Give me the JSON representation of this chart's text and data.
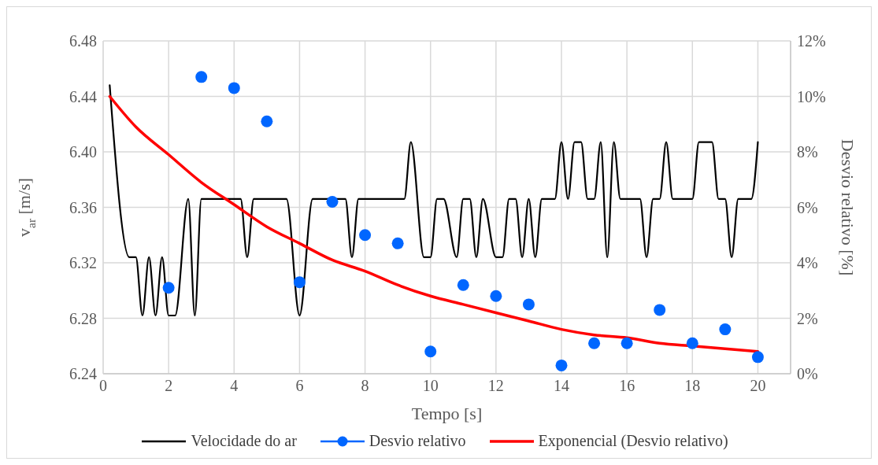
{
  "chart_data": {
    "type": "line",
    "xlabel": "Tempo [s]",
    "ylabel": "v$_{ar}$ [m/s]",
    "y2label": "Desvio relativo [%]",
    "xlim": [
      0,
      21
    ],
    "xticks": [
      0,
      2,
      4,
      6,
      8,
      10,
      12,
      14,
      16,
      18,
      20
    ],
    "ylim": [
      6.24,
      6.48
    ],
    "yticks": [
      6.24,
      6.28,
      6.32,
      6.36,
      {
        "value": 6.4,
        "label": "6.40"
      },
      6.44,
      6.48
    ],
    "y2lim": [
      0,
      12
    ],
    "y2ticks": [
      {
        "value": 0,
        "label": "0%"
      },
      {
        "value": 2,
        "label": "2%"
      },
      {
        "value": 4,
        "label": "4%"
      },
      {
        "value": 6,
        "label": "6%"
      },
      {
        "value": 8,
        "label": "8%"
      },
      {
        "value": 10,
        "label": "10%"
      },
      {
        "value": 12,
        "label": "12%"
      }
    ],
    "grid": true,
    "legend": "bottom",
    "series": [
      {
        "name": "Velocidade do ar",
        "color": "#000000",
        "marker": "none",
        "x": [
          0.2,
          0.8,
          1.0,
          1.2,
          1.4,
          1.6,
          1.8,
          2.0,
          2.2,
          2.6,
          2.8,
          3.0,
          3.4,
          4.0,
          4.2,
          4.4,
          4.6,
          5.0,
          5.6,
          6.0,
          6.4,
          7.0,
          7.4,
          7.6,
          7.8,
          8.4,
          9.2,
          9.4,
          9.8,
          10.0,
          10.2,
          10.4,
          10.8,
          11.0,
          11.2,
          11.4,
          11.6,
          12.0,
          12.2,
          12.4,
          12.6,
          12.8,
          13.0,
          13.2,
          13.4,
          13.8,
          14.0,
          14.2,
          14.4,
          14.6,
          14.8,
          15.0,
          15.2,
          15.4,
          15.6,
          15.8,
          16.4,
          16.6,
          16.8,
          17.0,
          17.2,
          17.4,
          18.0,
          18.2,
          18.4,
          18.6,
          18.8,
          19.0,
          19.2,
          19.4,
          19.8,
          20.0
        ],
        "values": [
          6.448,
          6.324,
          6.324,
          6.282,
          6.324,
          6.282,
          6.324,
          6.282,
          6.282,
          6.366,
          6.282,
          6.366,
          6.366,
          6.366,
          6.366,
          6.324,
          6.366,
          6.366,
          6.366,
          6.282,
          6.366,
          6.366,
          6.366,
          6.324,
          6.366,
          6.366,
          6.366,
          6.407,
          6.324,
          6.324,
          6.366,
          6.366,
          6.324,
          6.366,
          6.366,
          6.324,
          6.366,
          6.324,
          6.324,
          6.366,
          6.366,
          6.324,
          6.366,
          6.324,
          6.366,
          6.366,
          6.407,
          6.366,
          6.407,
          6.407,
          6.366,
          6.366,
          6.407,
          6.324,
          6.407,
          6.366,
          6.366,
          6.324,
          6.366,
          6.366,
          6.407,
          6.366,
          6.366,
          6.407,
          6.407,
          6.407,
          6.366,
          6.366,
          6.324,
          6.366,
          6.366,
          6.407
        ]
      },
      {
        "name": "Desvio relativo",
        "type": "scatter",
        "axis": "y2",
        "color": "#0066ff",
        "marker": "circle",
        "x": [
          2,
          3,
          4,
          5,
          6,
          7,
          8,
          9,
          10,
          11,
          12,
          13,
          14,
          15,
          16,
          17,
          18,
          19,
          20
        ],
        "values": [
          3.1,
          10.7,
          10.3,
          9.1,
          3.3,
          6.2,
          5.0,
          4.7,
          0.8,
          3.2,
          2.8,
          2.5,
          0.3,
          1.1,
          1.1,
          2.3,
          1.1,
          1.6,
          0.6
        ]
      },
      {
        "name": "Exponencial (Desvio relativo)",
        "type": "line",
        "axis": "y2",
        "color": "#ff0000",
        "marker": "none",
        "x": [
          0.2,
          1,
          2,
          3,
          4,
          5,
          6,
          7,
          8,
          9,
          10,
          11,
          12,
          13,
          14,
          15,
          16,
          17,
          18,
          19,
          20
        ],
        "values": [
          10.0,
          8.9,
          7.9,
          6.9,
          6.1,
          5.3,
          4.7,
          4.1,
          3.7,
          3.2,
          2.8,
          2.5,
          2.2,
          1.9,
          1.6,
          1.4,
          1.3,
          1.1,
          1.0,
          0.9,
          0.8
        ]
      }
    ]
  }
}
